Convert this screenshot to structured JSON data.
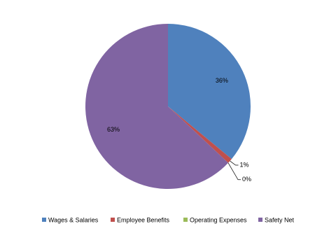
{
  "chart_data": {
    "type": "pie",
    "categories": [
      "Wages & Salaries",
      "Employee Benefits",
      "Operating Expenses",
      "Safety Net"
    ],
    "values": [
      36,
      1,
      0,
      63
    ],
    "value_labels": [
      "36%",
      "1%",
      "0%",
      "63%"
    ],
    "colors": [
      "#4f81bd",
      "#c0504d",
      "#9bbb59",
      "#8064a2"
    ],
    "legend": "bottom"
  }
}
